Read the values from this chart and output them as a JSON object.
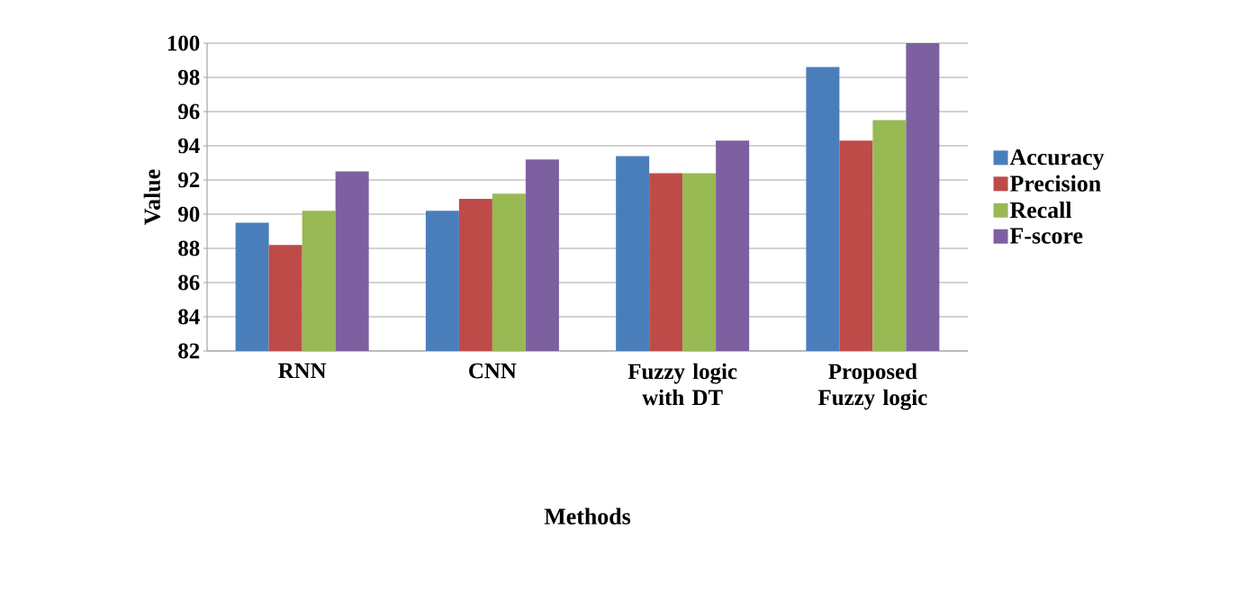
{
  "chart_data": {
    "type": "bar",
    "xlabel": "Methods",
    "ylabel": "Value",
    "categories": [
      "RNN",
      "CNN",
      "Fuzzy logic with DT",
      "Proposed Fuzzy logic"
    ],
    "series": [
      {
        "name": "Accuracy",
        "color": "#4a7ebb",
        "values": [
          89.5,
          90.2,
          93.4,
          98.6
        ]
      },
      {
        "name": "Precision",
        "color": "#be4b48",
        "values": [
          88.2,
          90.9,
          92.4,
          94.3
        ]
      },
      {
        "name": "Recall",
        "color": "#98b954",
        "values": [
          90.2,
          91.2,
          92.4,
          95.5
        ]
      },
      {
        "name": "F-score",
        "color": "#7d60a0",
        "values": [
          92.5,
          93.2,
          94.3,
          100
        ]
      }
    ],
    "ylim": [
      82,
      100
    ],
    "yticks": [
      82,
      84,
      86,
      88,
      90,
      92,
      94,
      96,
      98,
      100
    ],
    "grid": "y",
    "legend": "right"
  }
}
